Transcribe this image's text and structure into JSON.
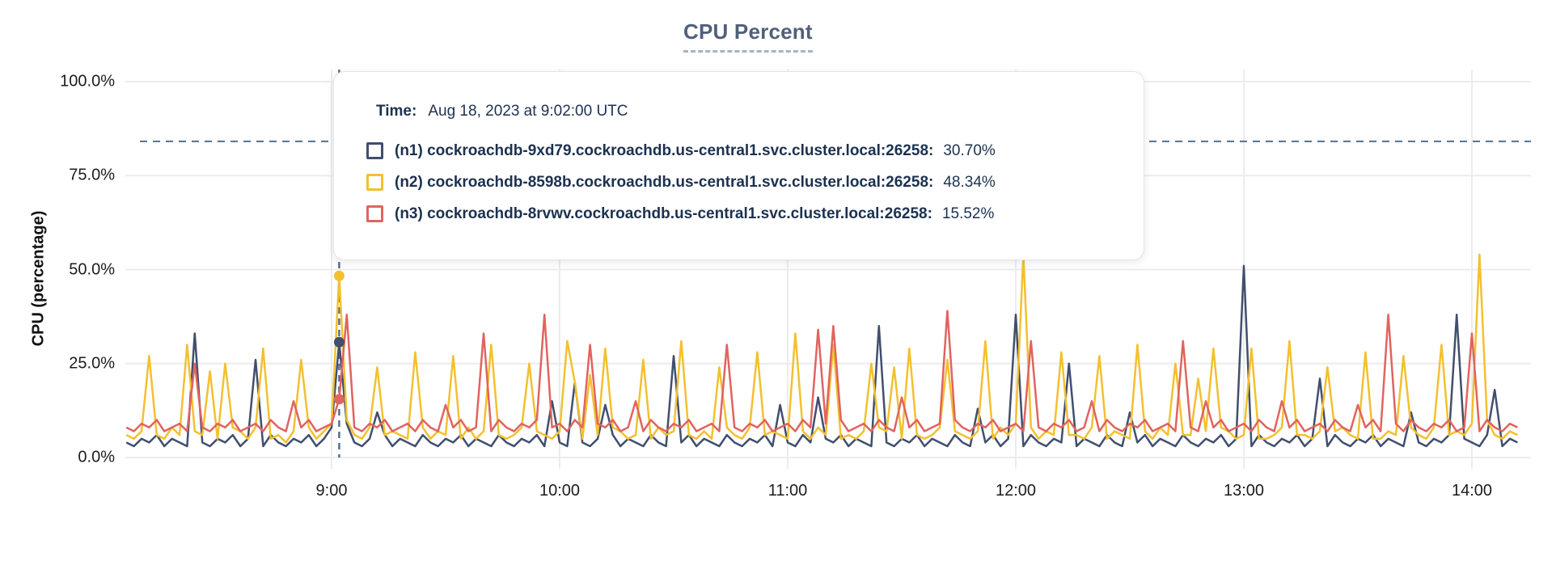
{
  "title": "CPU Percent",
  "tooltip": {
    "time_label": "Time:",
    "time_value": "Aug 18, 2023 at 9:02:00 UTC",
    "rows": [
      {
        "label": "(n1) cockroachdb-9xd79.cockroachdb.us-central1.svc.cluster.local:26258:",
        "value": "30.70%",
        "color": "#414f6d"
      },
      {
        "label": "(n2) cockroachdb-8598b.cockroachdb.us-central1.svc.cluster.local:26258:",
        "value": "48.34%",
        "color": "#f3c02f"
      },
      {
        "label": "(n3) cockroachdb-8rvwv.cockroachdb.us-central1.svc.cluster.local:26258:",
        "value": "15.52%",
        "color": "#e0645f"
      }
    ]
  },
  "axes": {
    "ylabel": "CPU (percentage)",
    "y_ticks": [
      {
        "value": 0,
        "label": "0.0%"
      },
      {
        "value": 25,
        "label": "25.0%"
      },
      {
        "value": 50,
        "label": "50.0%"
      },
      {
        "value": 75,
        "label": "75.0%"
      },
      {
        "value": 100,
        "label": "100.0%"
      }
    ],
    "x_ticks": [
      {
        "minute": 540,
        "label": "9:00"
      },
      {
        "minute": 600,
        "label": "10:00"
      },
      {
        "minute": 660,
        "label": "11:00"
      },
      {
        "minute": 720,
        "label": "12:00"
      },
      {
        "minute": 780,
        "label": "13:00"
      },
      {
        "minute": 840,
        "label": "14:00"
      }
    ]
  },
  "chart_data": {
    "type": "line",
    "title": "CPU Percent",
    "ylabel": "CPU (percentage)",
    "ylim": [
      0,
      100
    ],
    "grid": true,
    "threshold_percent": 84.1,
    "x_start_minute": 486,
    "x_step_minutes": 2,
    "hover": {
      "minute": 542,
      "time_text": "Aug 18, 2023 at 9:02:00 UTC",
      "values": [
        30.7,
        48.34,
        15.52
      ]
    },
    "series": [
      {
        "name": "(n1) cockroachdb-9xd79.cockroachdb.us-central1.svc.cluster.local:26258",
        "color": "#414f6d",
        "values": [
          4,
          3,
          5,
          4,
          6,
          3,
          5,
          4,
          3,
          33,
          4,
          3,
          5,
          4,
          6,
          3,
          5,
          26,
          3,
          6,
          4,
          3,
          5,
          4,
          6,
          3,
          5,
          8,
          30.7,
          9,
          4,
          3,
          5,
          12,
          6,
          3,
          5,
          4,
          3,
          6,
          4,
          3,
          5,
          4,
          6,
          3,
          5,
          4,
          3,
          6,
          4,
          3,
          5,
          4,
          6,
          3,
          15,
          4,
          3,
          20,
          4,
          3,
          5,
          14,
          6,
          3,
          5,
          4,
          3,
          6,
          4,
          3,
          27,
          4,
          6,
          3,
          5,
          4,
          3,
          6,
          4,
          3,
          5,
          4,
          6,
          3,
          14,
          4,
          3,
          6,
          4,
          16,
          5,
          4,
          6,
          3,
          5,
          4,
          3,
          35,
          4,
          3,
          5,
          4,
          6,
          3,
          5,
          4,
          3,
          6,
          4,
          3,
          13,
          4,
          6,
          3,
          5,
          38,
          3,
          6,
          4,
          3,
          5,
          4,
          25,
          3,
          5,
          4,
          3,
          6,
          4,
          3,
          12,
          4,
          6,
          3,
          5,
          4,
          3,
          6,
          4,
          3,
          5,
          4,
          6,
          3,
          5,
          51,
          3,
          6,
          4,
          3,
          5,
          4,
          6,
          3,
          5,
          21,
          3,
          6,
          4,
          3,
          5,
          4,
          6,
          3,
          5,
          4,
          3,
          12,
          4,
          3,
          5,
          4,
          6,
          38,
          5,
          4,
          3,
          6,
          18,
          3,
          5,
          4
        ]
      },
      {
        "name": "(n2) cockroachdb-8598b.cockroachdb.us-central1.svc.cluster.local:26258",
        "color": "#f3c02f",
        "values": [
          6,
          5,
          7,
          27,
          6,
          5,
          8,
          6,
          30,
          7,
          6,
          23,
          5,
          25,
          8,
          7,
          5,
          8,
          29,
          5,
          6,
          4,
          7,
          26,
          8,
          5,
          7,
          9,
          48.34,
          10,
          6,
          5,
          8,
          24,
          6,
          7,
          6,
          5,
          28,
          8,
          5,
          7,
          6,
          27,
          5,
          8,
          5,
          7,
          30,
          6,
          5,
          6,
          8,
          25,
          7,
          6,
          5,
          7,
          31,
          20,
          5,
          22,
          6,
          29,
          8,
          7,
          5,
          6,
          26,
          5,
          8,
          6,
          7,
          31,
          6,
          5,
          7,
          5,
          24,
          8,
          6,
          5,
          8,
          28,
          6,
          7,
          6,
          5,
          33,
          7,
          5,
          8,
          6,
          30,
          5,
          6,
          5,
          7,
          25,
          8,
          7,
          24,
          5,
          29,
          6,
          5,
          6,
          8,
          26,
          7,
          6,
          5,
          7,
          31,
          5,
          8,
          6,
          9,
          54,
          8,
          5,
          7,
          6,
          28,
          6,
          6,
          5,
          8,
          27,
          5,
          7,
          6,
          5,
          30,
          7,
          5,
          8,
          6,
          25,
          6,
          6,
          21,
          7,
          29,
          8,
          7,
          5,
          6,
          29,
          5,
          5,
          6,
          8,
          31,
          6,
          6,
          5,
          7,
          24,
          7,
          8,
          6,
          5,
          28,
          5,
          5,
          7,
          6,
          27,
          8,
          6,
          5,
          8,
          30,
          6,
          7,
          6,
          9,
          54,
          10,
          6,
          5,
          7,
          6
        ]
      },
      {
        "name": "(n3) cockroachdb-8rvwv.cockroachdb.us-central1.svc.cluster.local:26258",
        "color": "#e0645f",
        "values": [
          8,
          7,
          9,
          8,
          10,
          7,
          8,
          9,
          7,
          25,
          8,
          7,
          9,
          8,
          10,
          7,
          8,
          9,
          7,
          10,
          8,
          7,
          15,
          8,
          10,
          7,
          8,
          9,
          15.52,
          38,
          8,
          7,
          9,
          8,
          10,
          7,
          8,
          9,
          7,
          10,
          8,
          7,
          14,
          8,
          10,
          7,
          8,
          33,
          7,
          10,
          8,
          7,
          9,
          8,
          10,
          38,
          8,
          9,
          7,
          10,
          8,
          30,
          9,
          8,
          10,
          7,
          8,
          15,
          7,
          10,
          8,
          7,
          9,
          8,
          10,
          7,
          8,
          9,
          7,
          30,
          8,
          7,
          9,
          8,
          10,
          7,
          8,
          9,
          7,
          10,
          8,
          34,
          9,
          35,
          10,
          7,
          8,
          9,
          7,
          10,
          8,
          7,
          16,
          8,
          10,
          7,
          8,
          9,
          39,
          10,
          8,
          7,
          9,
          8,
          10,
          7,
          8,
          9,
          7,
          31,
          8,
          7,
          9,
          8,
          10,
          7,
          8,
          15,
          7,
          10,
          8,
          7,
          9,
          8,
          10,
          7,
          8,
          9,
          7,
          31,
          8,
          7,
          15,
          8,
          10,
          7,
          8,
          9,
          7,
          10,
          8,
          7,
          15,
          8,
          10,
          7,
          8,
          9,
          7,
          10,
          8,
          7,
          14,
          8,
          10,
          7,
          38,
          9,
          7,
          10,
          8,
          7,
          9,
          8,
          10,
          7,
          8,
          33,
          7,
          10,
          8,
          7,
          9,
          8
        ]
      }
    ]
  }
}
